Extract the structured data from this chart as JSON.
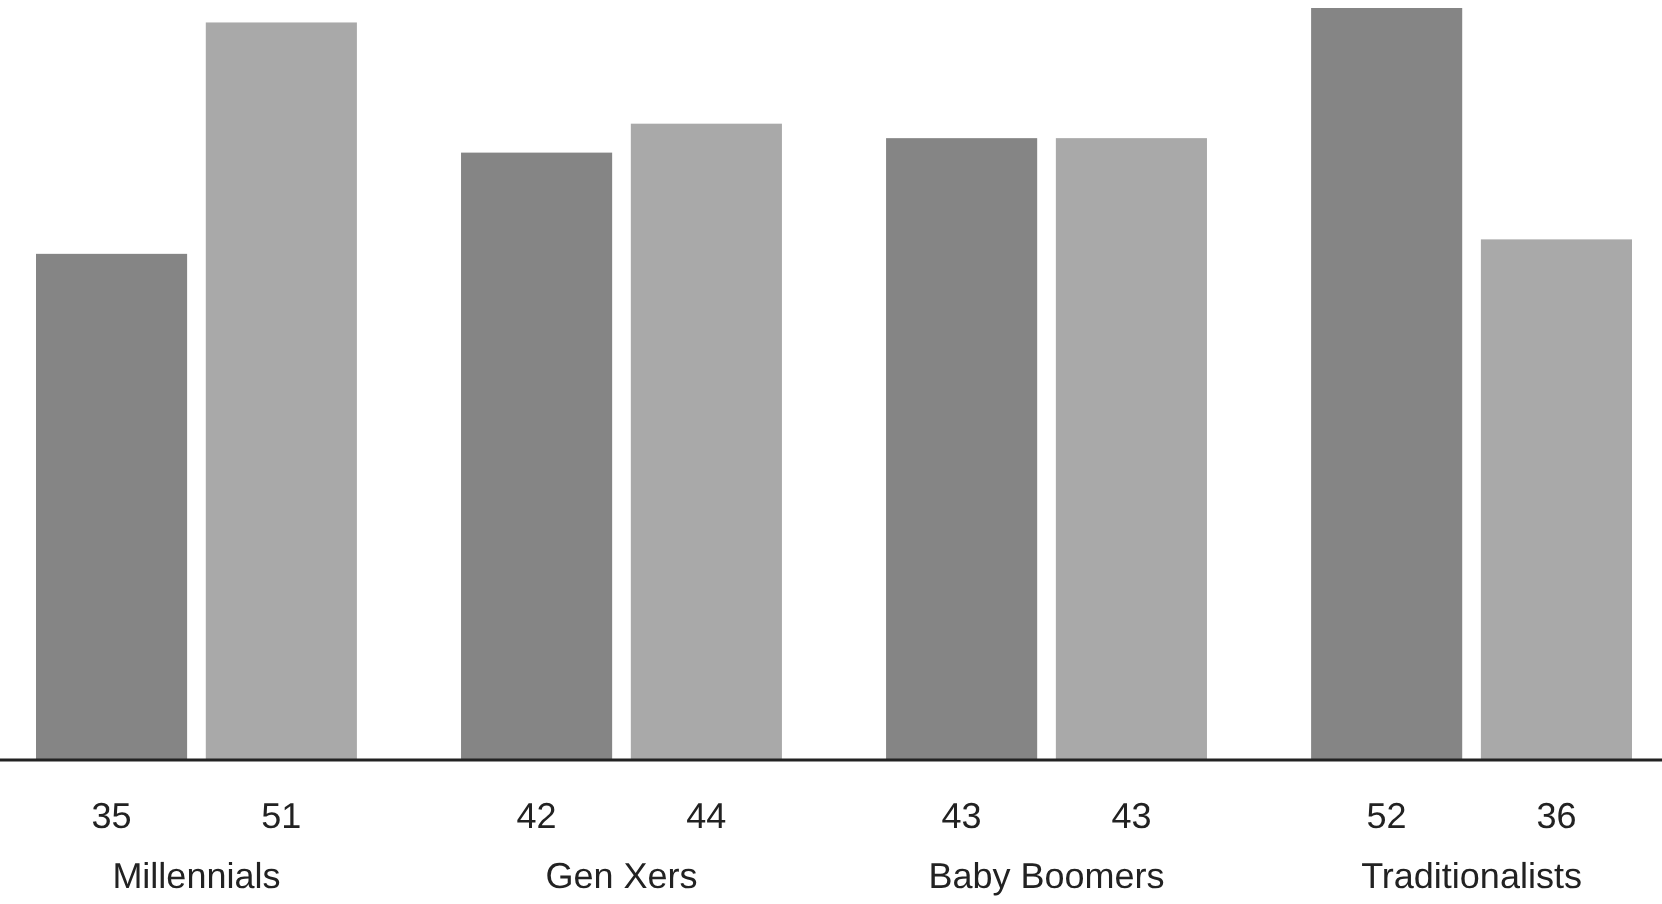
{
  "chart_data": {
    "type": "bar",
    "categories": [
      "Millennials",
      "Gen Xers",
      "Baby Boomers",
      "Traditionalists"
    ],
    "series": [
      {
        "color": "#858585",
        "values": [
          35,
          42,
          43,
          52
        ]
      },
      {
        "color": "#a9a9a9",
        "values": [
          51,
          44,
          43,
          36
        ]
      }
    ],
    "data_labels": true
  }
}
